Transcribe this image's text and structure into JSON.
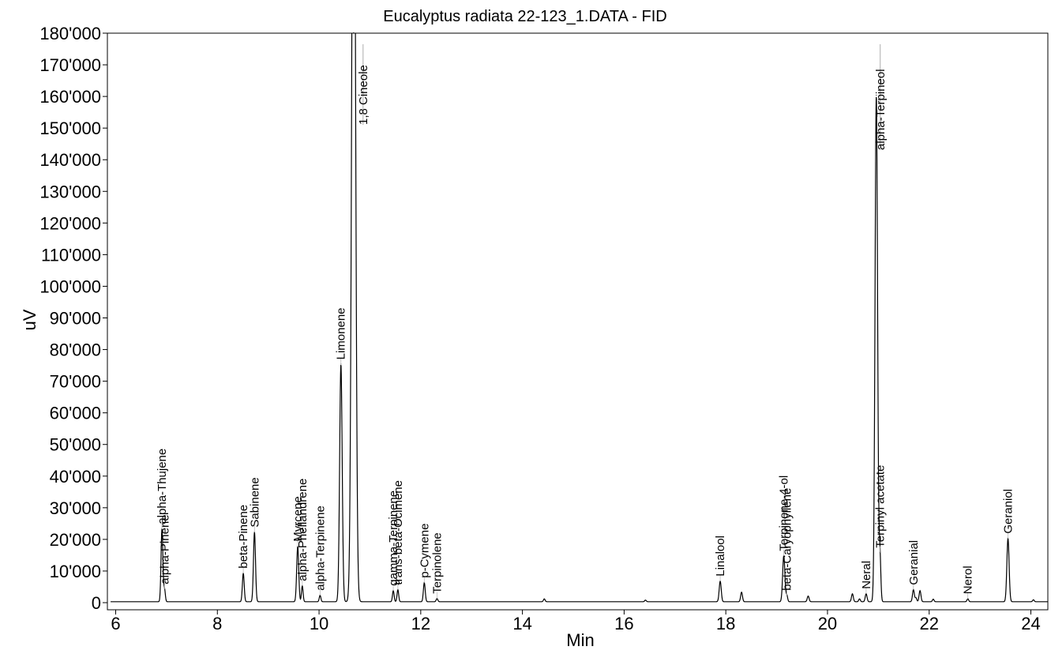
{
  "chart_data": {
    "type": "line",
    "title": "Eucalyptus radiata 22-123_1.DATA - FID",
    "xlabel": "Min",
    "ylabel": "uV",
    "xlim": [
      5.9,
      24.4
    ],
    "ylim": [
      -2000,
      180000
    ],
    "x_ticks": [
      6,
      8,
      10,
      12,
      14,
      16,
      18,
      20,
      22,
      24
    ],
    "x_tick_labels": [
      "6",
      "8",
      "10",
      "12",
      "14",
      "16",
      "18",
      "20",
      "22",
      "24"
    ],
    "y_ticks": [
      0,
      10000,
      20000,
      30000,
      40000,
      50000,
      60000,
      70000,
      80000,
      90000,
      100000,
      110000,
      120000,
      130000,
      140000,
      150000,
      160000,
      170000,
      180000
    ],
    "y_tick_labels": [
      "0",
      "10'000",
      "20'000",
      "30'000",
      "40'000",
      "50'000",
      "60'000",
      "70'000",
      "80'000",
      "90'000",
      "100'000",
      "110'000",
      "120'000",
      "130'000",
      "140'000",
      "150'000",
      "160'000",
      "170'000",
      "180'000"
    ],
    "grid": false,
    "legend": "none",
    "line_color": "#000000",
    "baseline": 300,
    "peaks": [
      {
        "label": "alpha-Thujene",
        "rt": 6.91,
        "height": 23000,
        "width": 0.018
      },
      {
        "label": "alpha-Pinene",
        "rt": 6.96,
        "height": 4000,
        "width": 0.016
      },
      {
        "label": "beta-Pinene",
        "rt": 8.51,
        "height": 9000,
        "width": 0.018
      },
      {
        "label": "Sabinene",
        "rt": 8.73,
        "height": 22000,
        "width": 0.02
      },
      {
        "label": "Myrcene",
        "rt": 9.58,
        "height": 17500,
        "width": 0.02
      },
      {
        "label": "alpha-Phellandrene",
        "rt": 9.67,
        "height": 5000,
        "width": 0.016
      },
      {
        "label": "alpha-Terpinene",
        "rt": 10.02,
        "height": 2000,
        "width": 0.016
      },
      {
        "label": "Limonene",
        "rt": 10.43,
        "height": 75000,
        "width": 0.025
      },
      {
        "label": "1,8 Cineole",
        "rt": 10.68,
        "height": 300000,
        "width": 0.035
      },
      {
        "label": "gamma-Terpinene",
        "rt": 11.46,
        "height": 3500,
        "width": 0.016
      },
      {
        "label": "trans-beta-Ocimene",
        "rt": 11.55,
        "height": 3800,
        "width": 0.016
      },
      {
        "label": "p-Cymene",
        "rt": 12.07,
        "height": 6000,
        "width": 0.018
      },
      {
        "label": "Terpinolene",
        "rt": 12.32,
        "height": 1000,
        "width": 0.016
      },
      {
        "label": "Linalool",
        "rt": 17.89,
        "height": 6500,
        "width": 0.02
      },
      {
        "label": "Terpinene-4-ol",
        "rt": 19.14,
        "height": 14500,
        "width": 0.022
      },
      {
        "label": "beta-Caryophyllene",
        "rt": 19.2,
        "height": 2000,
        "width": 0.016
      },
      {
        "label": "Neral",
        "rt": 20.76,
        "height": 2500,
        "width": 0.018
      },
      {
        "label": "alpha-Terpineol",
        "rt": 20.96,
        "height": 160000,
        "width": 0.025
      },
      {
        "label": "Terpinyl acetate",
        "rt": 21.03,
        "height": 15500,
        "width": 0.018
      },
      {
        "label": "Geranial",
        "rt": 21.69,
        "height": 3800,
        "width": 0.018
      },
      {
        "label": "Nerol",
        "rt": 22.76,
        "height": 900,
        "width": 0.016
      },
      {
        "label": "Geraniol",
        "rt": 23.55,
        "height": 20000,
        "width": 0.022
      }
    ],
    "unlabeled_peaks": [
      {
        "rt": 18.31,
        "height": 3000,
        "width": 0.018
      },
      {
        "rt": 19.62,
        "height": 1800,
        "width": 0.018
      },
      {
        "rt": 20.49,
        "height": 2500,
        "width": 0.018
      },
      {
        "rt": 20.63,
        "height": 900,
        "width": 0.016
      },
      {
        "rt": 21.82,
        "height": 3500,
        "width": 0.018
      },
      {
        "rt": 21.74,
        "height": 1200,
        "width": 0.016
      },
      {
        "rt": 22.08,
        "height": 800,
        "width": 0.016
      },
      {
        "rt": 14.43,
        "height": 900,
        "width": 0.016
      },
      {
        "rt": 16.42,
        "height": 500,
        "width": 0.016
      },
      {
        "rt": 24.05,
        "height": 600,
        "width": 0.016
      }
    ]
  }
}
